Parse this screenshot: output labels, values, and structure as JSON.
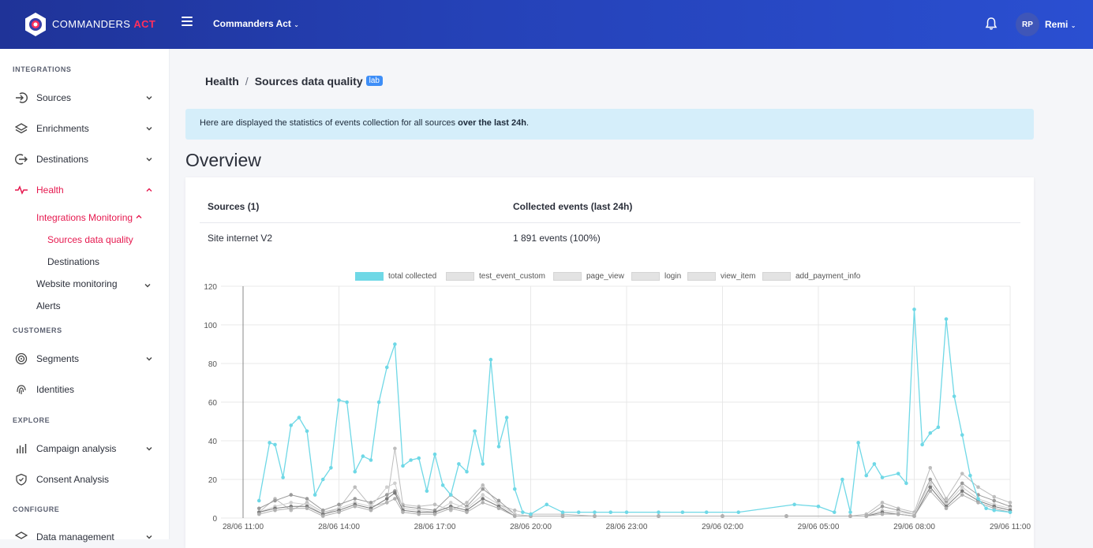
{
  "header": {
    "brand_main": "COMMANDERS",
    "brand_accent": "ACT",
    "org_selector": "Commanders Act",
    "user_initials": "RP",
    "user_name": "Remi"
  },
  "sidebar": {
    "sections": [
      "INTEGRATIONS",
      "CUSTOMERS",
      "EXPLORE",
      "CONFIGURE"
    ],
    "items": {
      "sources": "Sources",
      "enrichments": "Enrichments",
      "destinations": "Destinations",
      "health": "Health",
      "integrations_monitoring": "Integrations Monitoring",
      "sources_data_quality": "Sources data quality",
      "destinations_sub": "Destinations",
      "website_monitoring": "Website monitoring",
      "alerts": "Alerts",
      "segments": "Segments",
      "identities": "Identities",
      "campaign_analysis": "Campaign analysis",
      "consent_analysis": "Consent Analysis",
      "data_management": "Data management"
    }
  },
  "breadcrumb": {
    "root": "Health",
    "separator": "/",
    "current": "Sources data quality",
    "badge": "lab"
  },
  "info": {
    "text": "Here are displayed the statistics of events collection for all sources ",
    "bold": "over the last 24h",
    "end": "."
  },
  "overview_title": "Overview",
  "table": {
    "headers": [
      "Sources (1)",
      "Collected events (last 24h)"
    ],
    "rows": [
      [
        "Site internet V2",
        "1 891 events (100%)"
      ]
    ]
  },
  "colors": {
    "accent": "#e6194f",
    "series_total": "#6fd8e6",
    "series_other": "#c8c8c8"
  },
  "chart_data": {
    "type": "line",
    "legend": [
      "total collected",
      "test_event_custom",
      "page_view",
      "login",
      "view_item",
      "add_payment_info"
    ],
    "x_ticks": [
      "28/06 11:00",
      "28/06 14:00",
      "28/06 17:00",
      "28/06 20:00",
      "28/06 23:00",
      "29/06 02:00",
      "29/06 05:00",
      "29/06 08:00",
      "29/06 11:00"
    ],
    "y_ticks": [
      "0",
      "20",
      "40",
      "60",
      "80",
      "100",
      "120"
    ],
    "ylim": [
      0,
      120
    ],
    "x_range_hours": [
      0,
      24
    ],
    "series": [
      {
        "name": "total collected",
        "x": [
          0.5,
          0.83,
          1.0,
          1.25,
          1.5,
          1.75,
          2.0,
          2.25,
          2.5,
          2.75,
          3.0,
          3.25,
          3.5,
          3.75,
          4.0,
          4.25,
          4.5,
          4.75,
          5.0,
          5.25,
          5.5,
          5.75,
          6.0,
          6.25,
          6.5,
          6.75,
          7.0,
          7.25,
          7.5,
          7.75,
          8.0,
          8.25,
          8.5,
          8.75,
          9.0,
          9.5,
          10.0,
          10.5,
          11.0,
          11.5,
          12.0,
          13.0,
          13.75,
          14.5,
          15.5,
          17.25,
          18.0,
          18.5,
          18.75,
          19.0,
          19.25,
          19.5,
          19.75,
          20.0,
          20.5,
          20.75,
          21.0,
          21.25,
          21.5,
          21.75,
          22.0,
          22.25,
          22.5,
          22.75,
          23.0,
          23.25,
          23.5,
          24.0
        ],
        "values": [
          9,
          39,
          38,
          21,
          48,
          52,
          45,
          12,
          20,
          26,
          61,
          60,
          24,
          32,
          30,
          60,
          78,
          90,
          27,
          30,
          31,
          14,
          33,
          17,
          12,
          28,
          24,
          45,
          28,
          82,
          37,
          52,
          15,
          3,
          2,
          7,
          3,
          3,
          3,
          3,
          3,
          3,
          3,
          3,
          3,
          7,
          6,
          3,
          20,
          3,
          39,
          22,
          28,
          21,
          23,
          18,
          108,
          38,
          44,
          47,
          103,
          63,
          43,
          22,
          10,
          5,
          4,
          3
        ]
      },
      {
        "name": "test_event_custom",
        "x": [
          0.5,
          1.0,
          1.5,
          2.0,
          2.5,
          3.0,
          3.5,
          4.0,
          4.5,
          4.75,
          5.0,
          5.5,
          6.0,
          6.5,
          7.0,
          7.5,
          8.0,
          8.5,
          9.0,
          10.0,
          11.0,
          13.0,
          15.0,
          17.0,
          19.0,
          19.5,
          20.0,
          20.5,
          21.0,
          21.5,
          22.0,
          22.5,
          23.0,
          23.5,
          24.0
        ],
        "values": [
          3,
          10,
          4,
          8,
          3,
          5,
          16,
          6,
          8,
          36,
          7,
          6,
          7,
          4,
          8,
          17,
          7,
          4,
          2,
          2,
          1,
          1,
          1,
          1,
          1,
          2,
          8,
          5,
          3,
          26,
          10,
          23,
          16,
          11,
          8
        ]
      },
      {
        "name": "page_view",
        "x": [
          0.5,
          1.0,
          1.5,
          2.0,
          2.5,
          3.0,
          3.5,
          4.0,
          4.5,
          4.75,
          5.0,
          5.5,
          6.0,
          6.5,
          7.0,
          7.5,
          8.0,
          8.5,
          9.0,
          10.0,
          11.0,
          13.0,
          15.0,
          17.0,
          19.0,
          19.5,
          20.0,
          20.5,
          21.0,
          21.5,
          22.0,
          22.5,
          23.0,
          23.5,
          24.0
        ],
        "values": [
          5,
          9,
          12,
          10,
          4,
          7,
          10,
          8,
          12,
          14,
          6,
          5,
          4,
          12,
          6,
          15,
          9,
          2,
          1,
          1,
          1,
          1,
          1,
          1,
          1,
          1,
          6,
          4,
          2,
          20,
          8,
          18,
          12,
          9,
          6
        ]
      },
      {
        "name": "login",
        "x": [
          0.5,
          1.0,
          1.5,
          2.0,
          2.5,
          3.0,
          3.5,
          4.0,
          4.5,
          4.75,
          5.0,
          5.5,
          6.0,
          6.5,
          7.0,
          7.5,
          8.0,
          8.5,
          9.0,
          10.0,
          11.0,
          13.0,
          15.0,
          17.0,
          19.0,
          19.5,
          20.0,
          20.5,
          21.0,
          21.5,
          22.0,
          22.5,
          23.0,
          23.5,
          24.0
        ],
        "values": [
          3,
          6,
          8,
          7,
          2,
          5,
          8,
          6,
          16,
          18,
          5,
          4,
          3,
          8,
          5,
          12,
          7,
          2,
          1,
          1,
          1,
          1,
          1,
          1,
          1,
          1,
          4,
          3,
          2,
          18,
          7,
          16,
          10,
          7,
          5
        ]
      },
      {
        "name": "view_item",
        "x": [
          0.5,
          1.0,
          1.5,
          2.0,
          2.5,
          3.0,
          3.5,
          4.0,
          4.5,
          4.75,
          5.0,
          5.5,
          6.0,
          6.5,
          7.0,
          7.5,
          8.0,
          8.5,
          9.0,
          10.0,
          11.0,
          13.0,
          15.0,
          17.0,
          19.0,
          19.5,
          20.0,
          20.5,
          21.0,
          21.5,
          22.0,
          22.5,
          23.0,
          23.5,
          24.0
        ],
        "values": [
          3,
          5,
          6,
          6,
          2,
          4,
          7,
          5,
          10,
          13,
          4,
          3,
          3,
          6,
          4,
          10,
          6,
          1,
          1,
          1,
          1,
          1,
          1,
          1,
          1,
          1,
          3,
          2,
          1,
          16,
          6,
          14,
          9,
          6,
          4
        ]
      },
      {
        "name": "add_payment_info",
        "x": [
          0.5,
          1.0,
          1.5,
          2.0,
          2.5,
          3.0,
          3.5,
          4.0,
          4.5,
          4.75,
          5.0,
          5.5,
          6.0,
          6.5,
          7.0,
          7.5,
          8.0,
          8.5,
          9.0,
          10.0,
          11.0,
          13.0,
          15.0,
          17.0,
          19.0,
          19.5,
          20.0,
          20.5,
          21.0,
          21.5,
          22.0,
          22.5,
          23.0,
          23.5,
          24.0
        ],
        "values": [
          2,
          4,
          5,
          5,
          1,
          3,
          6,
          4,
          8,
          10,
          3,
          2,
          2,
          5,
          3,
          8,
          5,
          1,
          1,
          1,
          1,
          1,
          1,
          1,
          1,
          1,
          2,
          2,
          1,
          14,
          5,
          12,
          8,
          5,
          3
        ]
      }
    ]
  }
}
